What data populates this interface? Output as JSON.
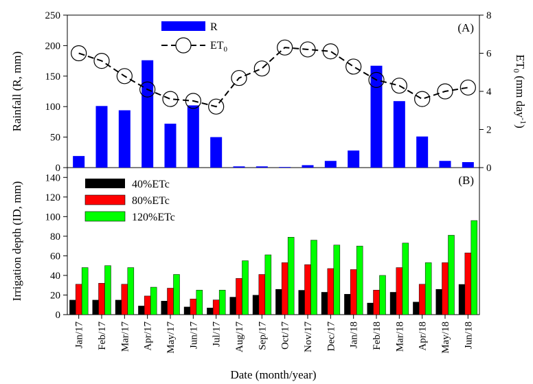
{
  "chart_data": [
    {
      "type": "bar",
      "panel_label": "(A)",
      "categories": [
        "Jan/17",
        "Feb/17",
        "Mar/17",
        "Apr/17",
        "May/17",
        "Jun/17",
        "Jul/17",
        "Aug/17",
        "Sep/17",
        "Oct/17",
        "Nov/17",
        "Dec/17",
        "Jan/18",
        "Feb/18",
        "Mar/18",
        "Apr/18",
        "May/18",
        "Jun/18"
      ],
      "ylabel": "Rainfall (R, mm)",
      "ylim": [
        0,
        250
      ],
      "yticks": [
        "0",
        "50",
        "100",
        "150",
        "200",
        "250"
      ],
      "y2label": "ET0 (mm day-1)",
      "y2label_main": "ET",
      "y2label_sub": "0",
      "y2label_mid": " (mm day",
      "y2label_sup": "-1",
      "y2label_end": ")",
      "y2lim": [
        0,
        8
      ],
      "y2ticks": [
        "0",
        "2",
        "4",
        "6",
        "8"
      ],
      "series": [
        {
          "name": "R",
          "kind": "bar",
          "axis": "left",
          "color": "#0000ff",
          "values": [
            19,
            101,
            94,
            176,
            72,
            102,
            50,
            2,
            2,
            1,
            4,
            11,
            28,
            167,
            109,
            51,
            11,
            9
          ]
        },
        {
          "name": "ET0",
          "kind": "line",
          "axis": "right",
          "style": "dashed",
          "marker": "open-circle",
          "values": [
            6.0,
            5.6,
            4.8,
            4.1,
            3.6,
            3.5,
            3.2,
            4.7,
            5.2,
            6.3,
            6.2,
            6.1,
            5.3,
            4.6,
            4.3,
            3.6,
            4.0,
            4.2
          ]
        }
      ],
      "legend": {
        "placement": "top-center",
        "items": [
          {
            "label": "R",
            "symbol": "bar"
          },
          {
            "label_main": "ET",
            "label_sub": "0",
            "symbol": "line-circle"
          }
        ]
      }
    },
    {
      "type": "bar",
      "panel_label": "(B)",
      "categories": [
        "Jan/17",
        "Feb/17",
        "Mar/17",
        "Apr/17",
        "May/17",
        "Jun/17",
        "Jul/17",
        "Aug/17",
        "Sep/17",
        "Oct/17",
        "Nov/17",
        "Dec/17",
        "Jan/18",
        "Feb/18",
        "Mar/18",
        "Apr/18",
        "May/18",
        "Jun/18"
      ],
      "xlabel": "Date (month/year)",
      "ylabel": "Irrigation depth (ID, mm)",
      "ylim": [
        0,
        150
      ],
      "yticks": [
        "0",
        "20",
        "40",
        "60",
        "80",
        "100",
        "120",
        "140"
      ],
      "series": [
        {
          "name": "40%ETc",
          "color": "#000000",
          "values": [
            15,
            15,
            15,
            9,
            14,
            8,
            7,
            18,
            20,
            26,
            25,
            23,
            21,
            12,
            23,
            13,
            26,
            31
          ]
        },
        {
          "name": "80%ETc",
          "color": "#ff0000",
          "values": [
            31,
            32,
            31,
            19,
            27,
            16,
            15,
            37,
            41,
            53,
            51,
            47,
            46,
            25,
            48,
            31,
            53,
            63
          ]
        },
        {
          "name": "120%ETc",
          "color": "#00ff00",
          "values": [
            48,
            50,
            48,
            28,
            41,
            25,
            25,
            55,
            61,
            79,
            76,
            71,
            70,
            40,
            73,
            53,
            81,
            96
          ]
        }
      ],
      "legend": {
        "placement": "top-left"
      }
    }
  ]
}
